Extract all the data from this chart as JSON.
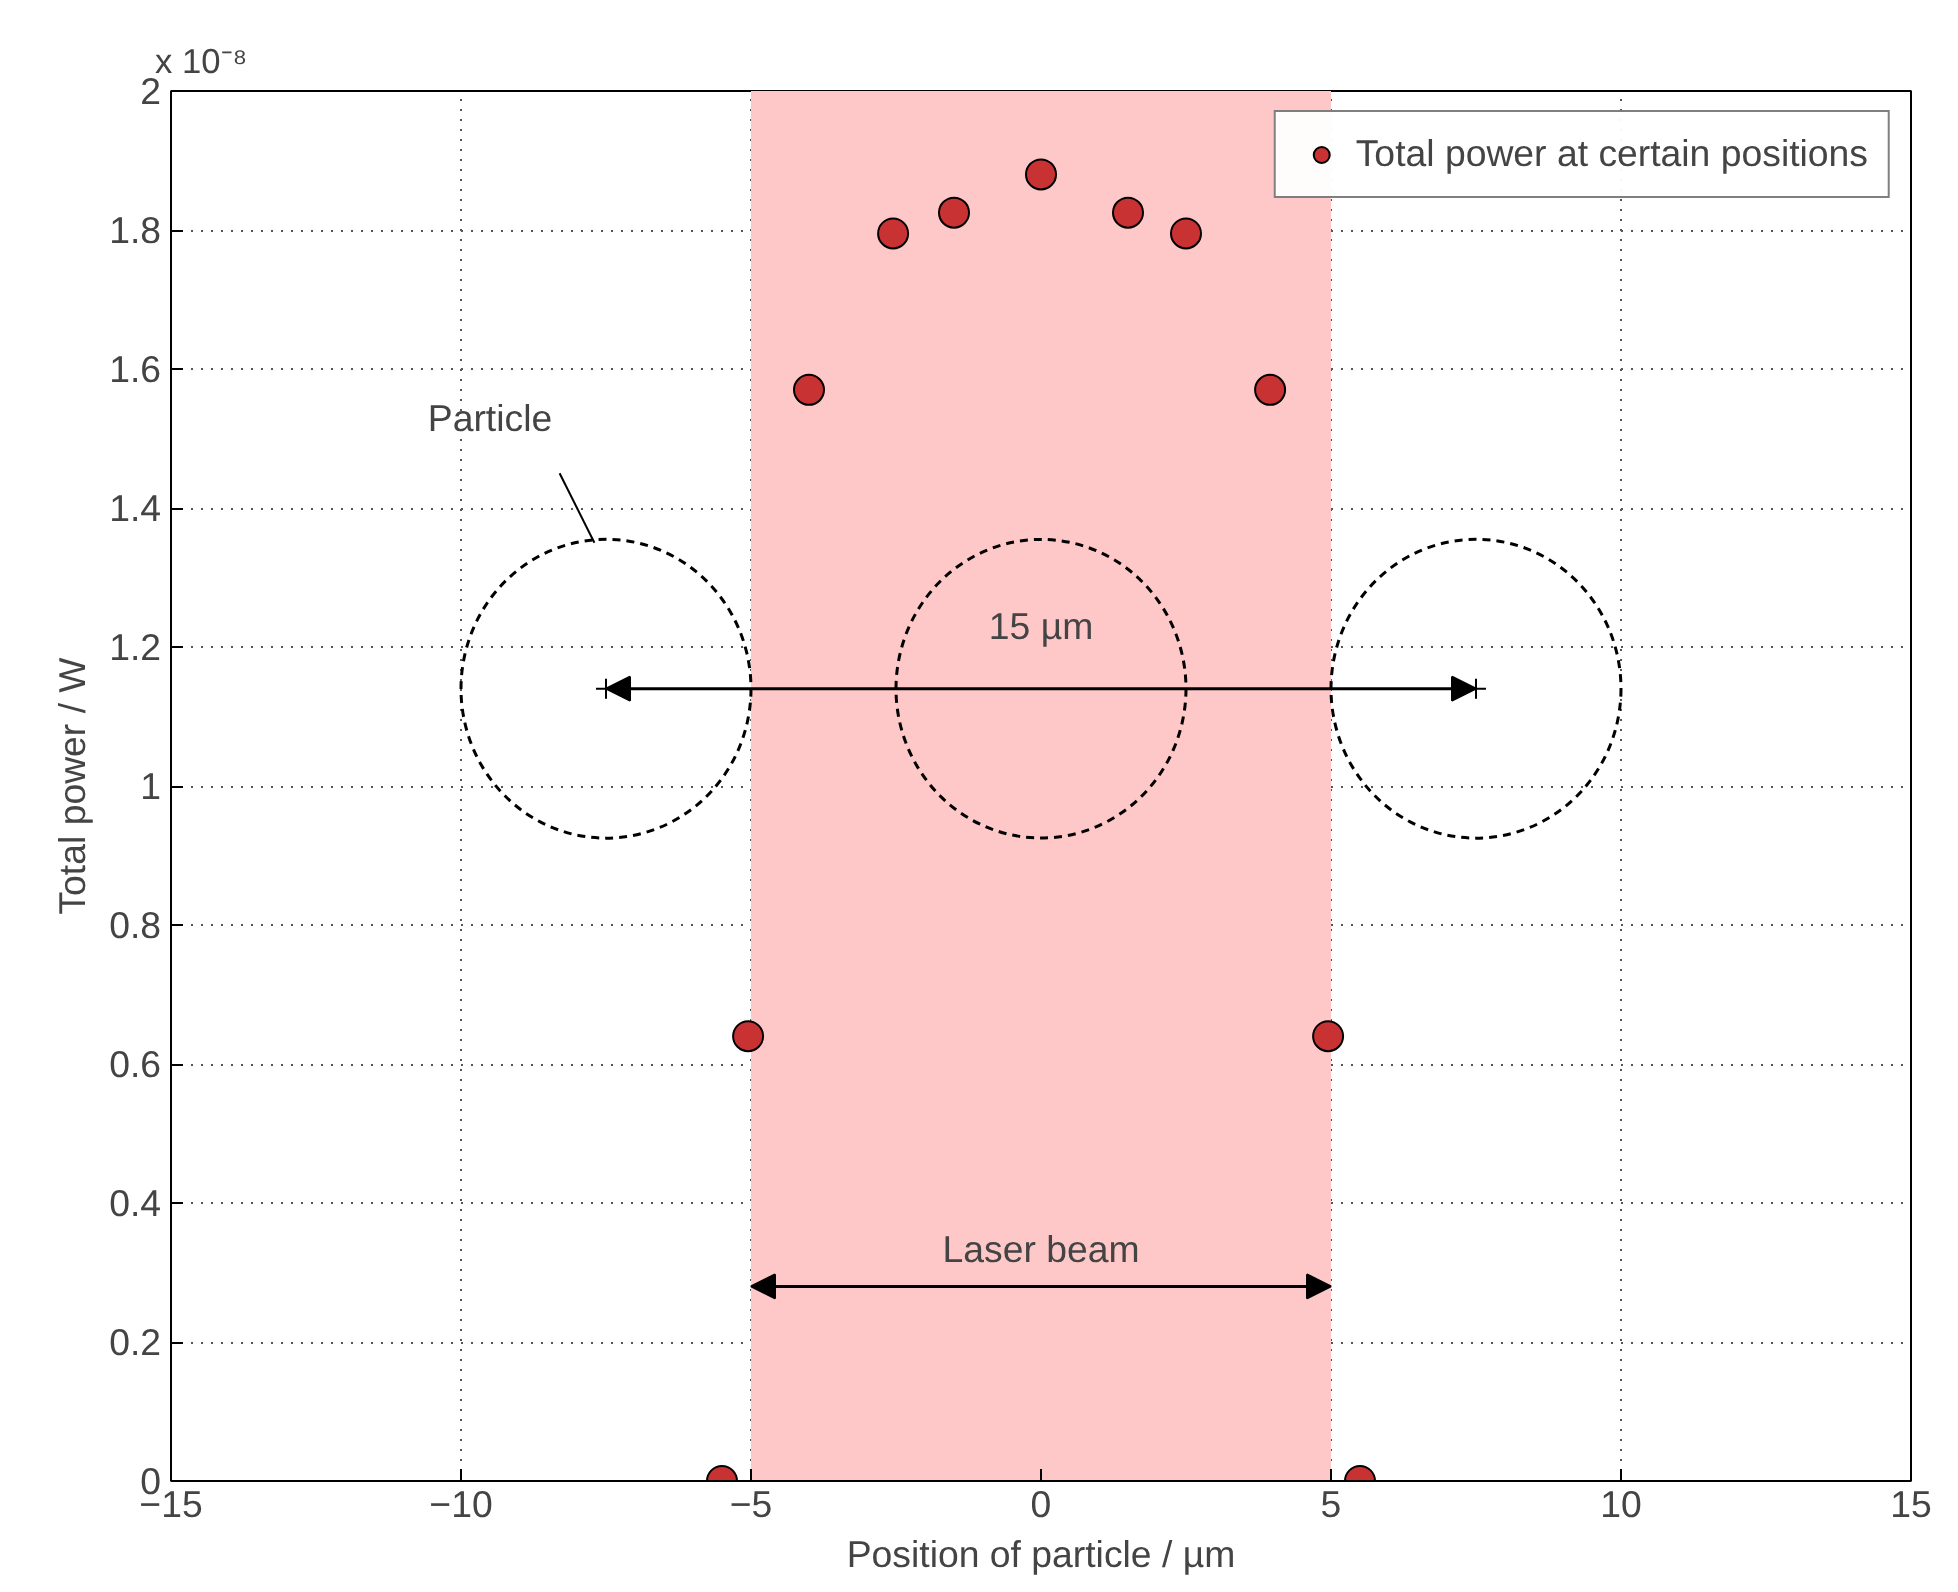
{
  "chart_data": {
    "type": "scatter",
    "xlabel": "Position of particle / µm",
    "ylabel": "Total power / W",
    "x": [
      -5.5,
      -5.05,
      -4.0,
      -2.55,
      -1.5,
      0.0,
      1.5,
      2.5,
      3.95,
      4.95,
      5.5
    ],
    "series": [
      {
        "name": "Total power at certain positions",
        "color": "#c83232",
        "values": [
          0.0,
          0.64,
          1.57,
          1.795,
          1.825,
          1.88,
          1.825,
          1.795,
          1.57,
          0.64,
          0.0
        ]
      }
    ],
    "xlim": [
      -15,
      15
    ],
    "xticks": [
      -15,
      -10,
      -5,
      0,
      5,
      10,
      15
    ],
    "ylim": [
      0,
      2
    ],
    "yticks": [
      0,
      0.2,
      0.4,
      0.6,
      0.8,
      1,
      1.2,
      1.4,
      1.6,
      1.8,
      2
    ],
    "bands": [
      {
        "axis": "x",
        "from": -5,
        "to": 5,
        "label": "Laser beam",
        "color": "#ffc8c8"
      }
    ],
    "annotations": [
      "x 10⁻⁸",
      "15 µm",
      "Particle"
    ],
    "grid": true,
    "legend": "top right",
    "marker": "circle"
  }
}
